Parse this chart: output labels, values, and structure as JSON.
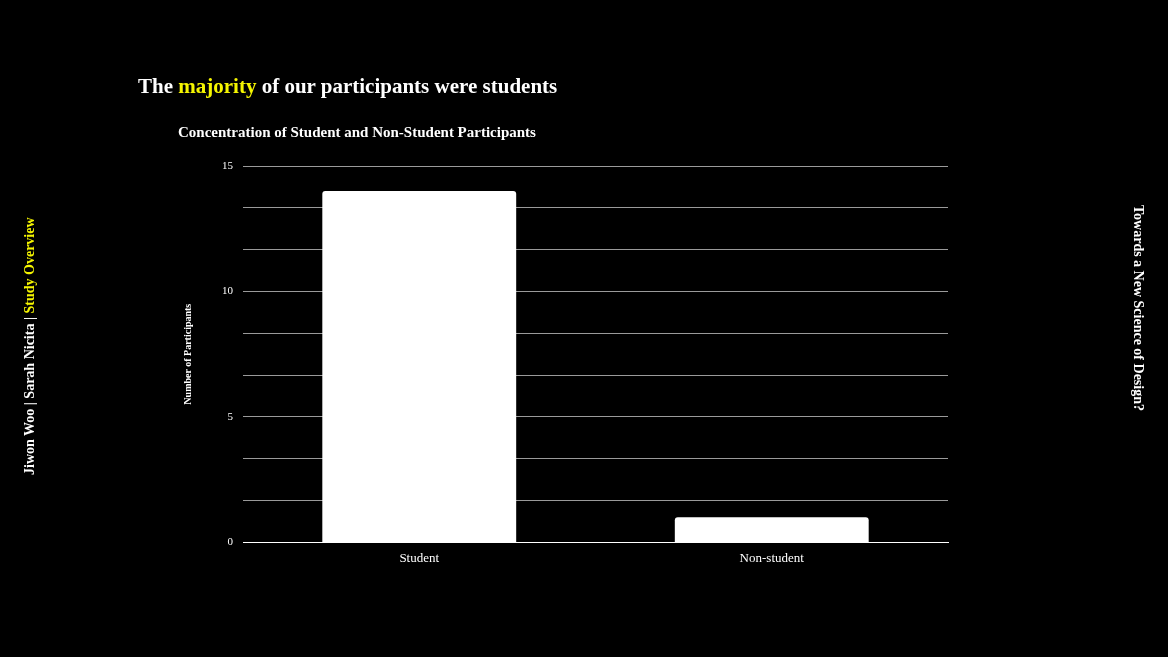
{
  "chart_data": {
    "type": "bar",
    "title": "The majority of our participants were students",
    "subtitle": "Concentration of Student and Non-Student Participants",
    "ylabel": "Number of Participants",
    "categories": [
      "Student",
      "Non-student"
    ],
    "values": [
      14,
      1
    ],
    "color": "#ffffff",
    "ylim": [
      0,
      15
    ],
    "yticks": [
      0,
      {
        "value": 1.6667,
        "label": null
      },
      {
        "value": 3.3333,
        "label": null
      },
      5,
      {
        "value": 6.6667,
        "label": null
      },
      {
        "value": 8.3333,
        "label": null
      },
      10,
      {
        "value": 11.6667,
        "label": null
      },
      {
        "value": 13.3333,
        "label": null
      },
      15
    ],
    "grid": "y",
    "annotations": [
      "Jiwon Woo | Sarah Nicita | Study Overview",
      "Towards a New Science of Design?"
    ]
  }
}
